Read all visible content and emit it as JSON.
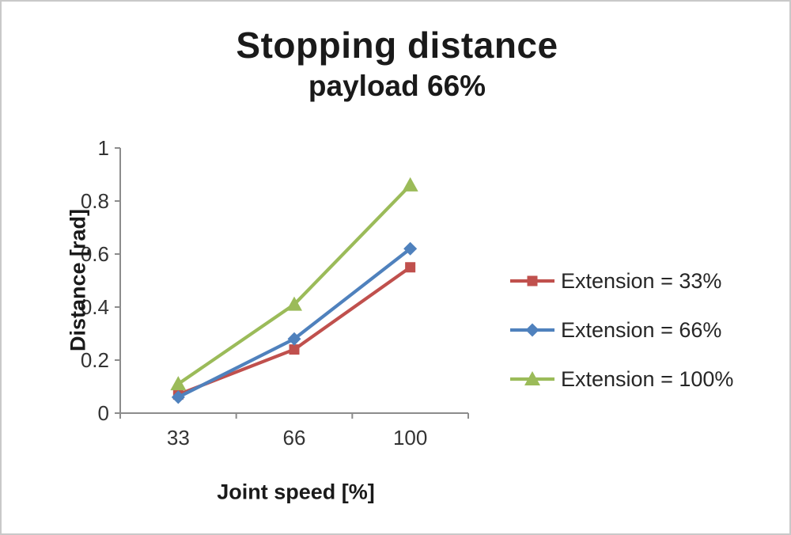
{
  "chart_data": {
    "type": "line",
    "title": "Stopping distance",
    "subtitle": "payload 66%",
    "xlabel": "Joint speed [%]",
    "ylabel": "Distance [rad]",
    "categories": [
      "33",
      "66",
      "100"
    ],
    "ylim": [
      0,
      1
    ],
    "ytick_step": 0.2,
    "grid": false,
    "legend_position": "right",
    "axis_color": "#8c8c8c",
    "tick_label_color": "#333333",
    "series": [
      {
        "name": "Extension = 33%",
        "marker": "square",
        "color": "#c0504d",
        "values": [
          0.07,
          0.24,
          0.55
        ]
      },
      {
        "name": "Extension = 66%",
        "marker": "diamond",
        "color": "#4f81bd",
        "values": [
          0.06,
          0.28,
          0.62
        ]
      },
      {
        "name": "Extension = 100%",
        "marker": "triangle",
        "color": "#9bbb59",
        "values": [
          0.11,
          0.41,
          0.86
        ]
      }
    ]
  }
}
